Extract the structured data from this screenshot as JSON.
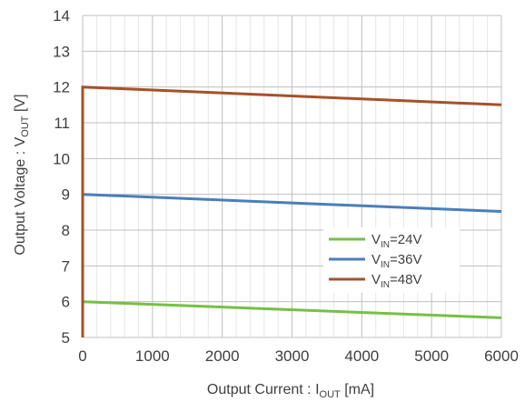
{
  "chart_data": {
    "type": "line",
    "xlabel": {
      "main": "Output Current : I",
      "sub": "OUT",
      "unit": " [mA]"
    },
    "ylabel": {
      "main": "Output Voltage : V",
      "sub": "OUT",
      "unit": " [V]"
    },
    "xlim": [
      0,
      6000
    ],
    "ylim": [
      5,
      14
    ],
    "x_ticks": [
      0,
      1000,
      2000,
      3000,
      4000,
      5000,
      6000
    ],
    "y_ticks": [
      5,
      6,
      7,
      8,
      9,
      10,
      11,
      12,
      13,
      14
    ],
    "x_minor_step": 200,
    "grid": true,
    "legend_position": "right",
    "series": [
      {
        "name": {
          "main": "V",
          "sub": "IN",
          "suffix": "=24V"
        },
        "color": "#76c043",
        "x": [
          0,
          0,
          6000
        ],
        "y": [
          5,
          6.0,
          5.55
        ]
      },
      {
        "name": {
          "main": "V",
          "sub": "IN",
          "suffix": "=36V"
        },
        "color": "#4a7ebb",
        "x": [
          0,
          0,
          6000
        ],
        "y": [
          5,
          9.0,
          8.52
        ]
      },
      {
        "name": {
          "main": "V",
          "sub": "IN",
          "suffix": "=48V"
        },
        "color": "#a65129",
        "x": [
          0,
          0,
          6000
        ],
        "y": [
          5,
          12.0,
          11.5
        ]
      }
    ]
  }
}
